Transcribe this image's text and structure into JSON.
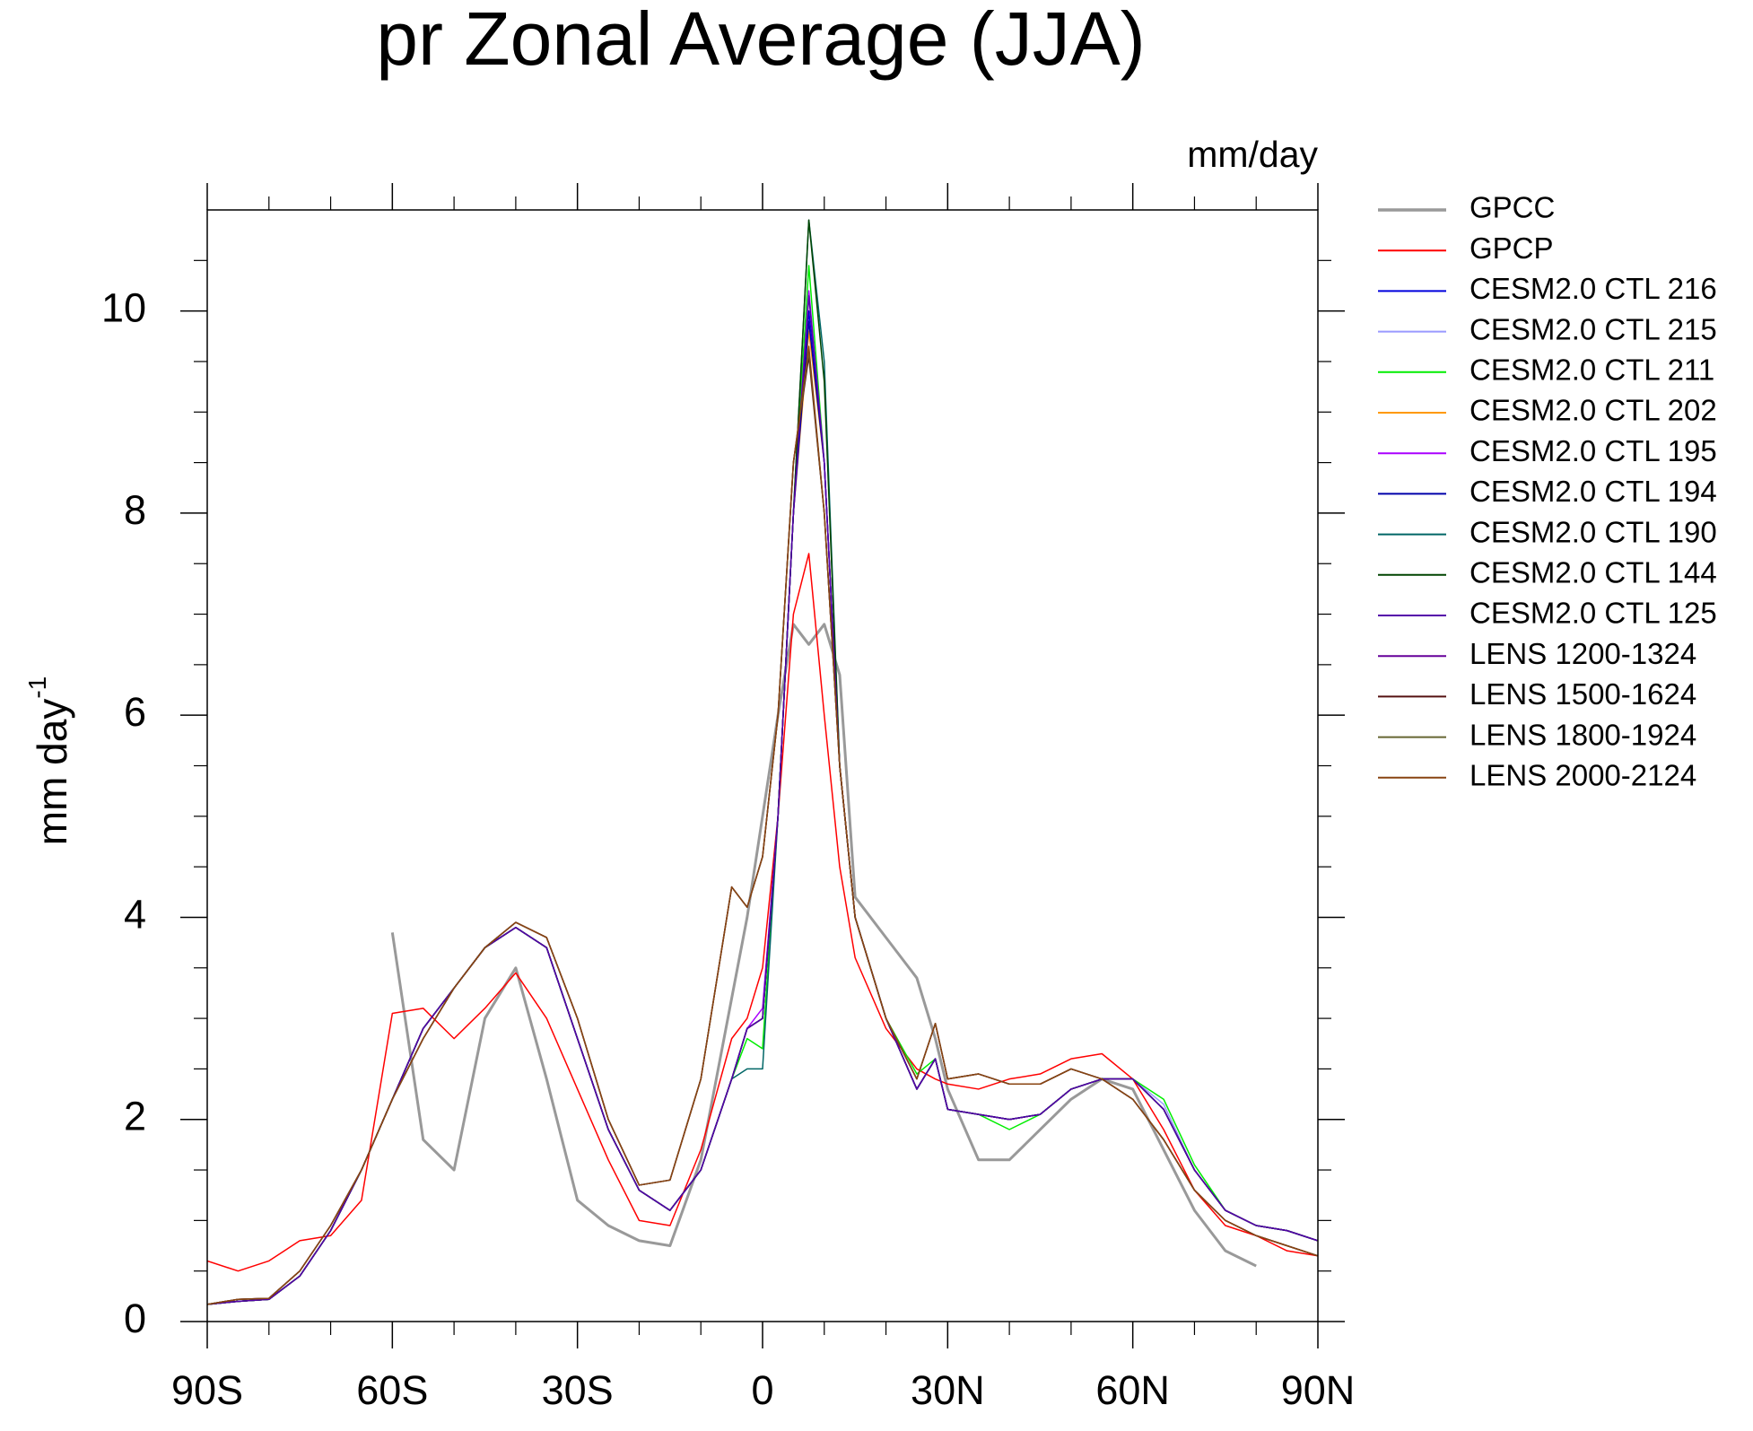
{
  "chart_data": {
    "type": "line",
    "title": "pr Zonal Average (JJA)",
    "units_label": "mm/day",
    "ylabel": "mm day",
    "ylabel_superscript": "-1",
    "x": [
      -90,
      -85,
      -80,
      -75,
      -70,
      -65,
      -60,
      -55,
      -50,
      -45,
      -40,
      -35,
      -30,
      -25,
      -20,
      -15,
      -10,
      -5,
      -2.5,
      0,
      2.5,
      5,
      7.5,
      10,
      12.5,
      15,
      20,
      25,
      28,
      30,
      35,
      40,
      45,
      50,
      55,
      60,
      65,
      70,
      75,
      80,
      85,
      90
    ],
    "xlim": [
      -90,
      90
    ],
    "xticks": [
      {
        "value": -90,
        "label": "90S"
      },
      {
        "value": -60,
        "label": "60S"
      },
      {
        "value": -30,
        "label": "30S"
      },
      0,
      {
        "value": 30,
        "label": "30N"
      },
      {
        "value": 60,
        "label": "60N"
      },
      {
        "value": 90,
        "label": "90N"
      }
    ],
    "xminorticks": [
      -80,
      -70,
      -50,
      -40,
      -20,
      -10,
      10,
      20,
      40,
      50,
      70,
      80
    ],
    "ylim": [
      0,
      11
    ],
    "yticks": [
      0,
      2,
      4,
      6,
      8,
      10
    ],
    "yminorticks": [
      0.5,
      1,
      1.5,
      2.5,
      3,
      3.5,
      4.5,
      5,
      5.5,
      6.5,
      7,
      7.5,
      8.5,
      9,
      9.5,
      10.5
    ],
    "legend": "right-outside",
    "series": [
      {
        "name": "GPCC",
        "color": "#999999",
        "width": 3,
        "values": [
          null,
          null,
          null,
          null,
          null,
          null,
          3.85,
          1.8,
          1.5,
          3.0,
          3.5,
          2.4,
          1.2,
          0.95,
          0.8,
          0.75,
          1.6,
          3.2,
          4.0,
          5.0,
          6.0,
          6.9,
          6.7,
          6.9,
          6.4,
          4.2,
          3.8,
          3.4,
          2.8,
          2.3,
          1.6,
          1.6,
          1.9,
          2.2,
          2.4,
          2.3,
          1.7,
          1.1,
          0.7,
          0.55,
          null,
          null
        ]
      },
      {
        "name": "GPCP",
        "color": "#ff0000",
        "width": 1.5,
        "values": [
          0.6,
          0.5,
          0.6,
          0.8,
          0.85,
          1.2,
          3.05,
          3.1,
          2.8,
          3.1,
          3.45,
          3.0,
          2.3,
          1.6,
          1.0,
          0.95,
          1.7,
          2.8,
          3.0,
          3.5,
          5.0,
          7.0,
          7.6,
          6.0,
          4.5,
          3.6,
          2.9,
          2.5,
          2.4,
          2.35,
          2.3,
          2.4,
          2.45,
          2.6,
          2.65,
          2.4,
          1.9,
          1.3,
          0.95,
          0.85,
          0.7,
          0.65
        ]
      },
      {
        "name": "CESM2.0 CTL 216",
        "color": "#0000dd",
        "width": 1.5,
        "values": [
          0.17,
          0.2,
          0.22,
          0.45,
          0.9,
          1.5,
          2.2,
          2.9,
          3.3,
          3.7,
          3.9,
          3.7,
          2.8,
          1.9,
          1.3,
          1.1,
          1.5,
          2.4,
          2.9,
          3.0,
          5.0,
          8.0,
          10.0,
          8.5,
          5.5,
          4.0,
          3.0,
          2.3,
          2.6,
          2.1,
          2.05,
          2.0,
          2.05,
          2.3,
          2.4,
          2.4,
          2.1,
          1.5,
          1.1,
          0.95,
          0.9,
          0.8
        ]
      },
      {
        "name": "CESM2.0 CTL 215",
        "color": "#9999ff",
        "width": 1.5,
        "values": [
          0.17,
          0.2,
          0.22,
          0.45,
          0.9,
          1.5,
          2.2,
          2.9,
          3.3,
          3.7,
          3.9,
          3.7,
          2.8,
          1.9,
          1.3,
          1.1,
          1.5,
          2.4,
          2.9,
          3.0,
          5.0,
          8.0,
          9.9,
          8.5,
          5.5,
          4.0,
          3.0,
          2.3,
          2.6,
          2.1,
          2.05,
          2.0,
          2.05,
          2.3,
          2.4,
          2.4,
          2.15,
          1.5,
          1.1,
          0.95,
          0.9,
          0.8
        ]
      },
      {
        "name": "CESM2.0 CTL 211",
        "color": "#00ee00",
        "width": 1.5,
        "values": [
          0.17,
          0.2,
          0.22,
          0.45,
          0.9,
          1.5,
          2.2,
          2.9,
          3.3,
          3.7,
          3.9,
          3.7,
          2.8,
          1.9,
          1.3,
          1.1,
          1.5,
          2.4,
          2.8,
          2.7,
          5.0,
          8.0,
          10.45,
          8.5,
          5.5,
          4.0,
          3.0,
          2.45,
          2.6,
          2.1,
          2.05,
          1.9,
          2.05,
          2.3,
          2.4,
          2.4,
          2.2,
          1.55,
          1.1,
          0.95,
          0.9,
          0.8
        ]
      },
      {
        "name": "CESM2.0 CTL 202",
        "color": "#ff9900",
        "width": 1.5,
        "values": [
          0.17,
          0.2,
          0.22,
          0.45,
          0.9,
          1.5,
          2.2,
          2.9,
          3.3,
          3.7,
          3.9,
          3.7,
          2.8,
          1.9,
          1.3,
          1.1,
          1.5,
          2.4,
          2.9,
          3.0,
          5.0,
          8.0,
          9.8,
          8.5,
          5.5,
          4.0,
          3.0,
          2.3,
          2.6,
          2.1,
          2.05,
          2.0,
          2.05,
          2.3,
          2.4,
          2.4,
          2.1,
          1.5,
          1.1,
          0.95,
          0.9,
          0.8
        ]
      },
      {
        "name": "CESM2.0 CTL 195",
        "color": "#aa00ff",
        "width": 1.5,
        "values": [
          0.17,
          0.2,
          0.22,
          0.45,
          0.9,
          1.5,
          2.2,
          2.9,
          3.3,
          3.7,
          3.9,
          3.7,
          2.8,
          1.9,
          1.3,
          1.1,
          1.5,
          2.4,
          2.9,
          3.1,
          5.0,
          8.0,
          10.2,
          8.5,
          5.5,
          4.0,
          3.0,
          2.3,
          2.6,
          2.1,
          2.05,
          2.0,
          2.05,
          2.3,
          2.4,
          2.4,
          2.1,
          1.5,
          1.1,
          0.95,
          0.9,
          0.8
        ]
      },
      {
        "name": "CESM2.0 CTL 194",
        "color": "#0000aa",
        "width": 1.5,
        "values": [
          0.17,
          0.2,
          0.22,
          0.45,
          0.9,
          1.5,
          2.2,
          2.9,
          3.3,
          3.7,
          3.9,
          3.7,
          2.8,
          1.9,
          1.3,
          1.1,
          1.5,
          2.4,
          2.9,
          3.0,
          5.0,
          8.0,
          9.9,
          8.5,
          5.5,
          4.0,
          3.0,
          2.3,
          2.6,
          2.1,
          2.05,
          2.0,
          2.05,
          2.3,
          2.4,
          2.4,
          2.1,
          1.5,
          1.1,
          0.95,
          0.9,
          0.8
        ]
      },
      {
        "name": "CESM2.0 CTL 190",
        "color": "#006666",
        "width": 1.5,
        "values": [
          0.17,
          0.2,
          0.22,
          0.45,
          0.9,
          1.5,
          2.2,
          2.9,
          3.3,
          3.7,
          3.9,
          3.7,
          2.8,
          1.9,
          1.3,
          1.1,
          1.5,
          2.4,
          2.5,
          2.5,
          5.0,
          8.0,
          10.9,
          9.5,
          5.5,
          4.0,
          3.0,
          2.3,
          2.6,
          2.1,
          2.05,
          2.0,
          2.05,
          2.3,
          2.4,
          2.4,
          2.1,
          1.5,
          1.1,
          0.95,
          0.9,
          0.8
        ]
      },
      {
        "name": "CESM2.0 CTL 144",
        "color": "#004400",
        "width": 1.5,
        "values": [
          0.17,
          0.2,
          0.22,
          0.45,
          0.9,
          1.5,
          2.2,
          2.9,
          3.3,
          3.7,
          3.9,
          3.7,
          2.8,
          1.9,
          1.3,
          1.1,
          1.5,
          2.4,
          2.9,
          3.0,
          5.0,
          8.0,
          10.9,
          9.3,
          5.5,
          4.0,
          3.0,
          2.3,
          2.6,
          2.1,
          2.05,
          2.0,
          2.05,
          2.3,
          2.4,
          2.4,
          2.1,
          1.5,
          1.1,
          0.95,
          0.9,
          0.8
        ]
      },
      {
        "name": "CESM2.0 CTL 125",
        "color": "#5500aa",
        "width": 1.5,
        "values": [
          0.17,
          0.2,
          0.22,
          0.45,
          0.9,
          1.5,
          2.2,
          2.9,
          3.3,
          3.7,
          3.9,
          3.7,
          2.8,
          1.9,
          1.3,
          1.1,
          1.5,
          2.4,
          2.9,
          3.0,
          5.0,
          8.0,
          10.15,
          8.5,
          5.5,
          4.0,
          3.0,
          2.3,
          2.6,
          2.1,
          2.05,
          2.0,
          2.05,
          2.3,
          2.4,
          2.4,
          2.1,
          1.5,
          1.1,
          0.95,
          0.9,
          0.8
        ]
      },
      {
        "name": "LENS 1200-1324",
        "color": "#660099",
        "width": 1.5,
        "values": [
          0.17,
          0.22,
          0.23,
          0.5,
          0.95,
          1.5,
          2.2,
          2.8,
          3.3,
          3.7,
          3.95,
          3.8,
          3.0,
          2.0,
          1.35,
          1.4,
          2.4,
          4.3,
          4.1,
          4.6,
          6.0,
          8.5,
          9.6,
          8.0,
          5.5,
          4.0,
          3.0,
          2.4,
          2.95,
          2.4,
          2.45,
          2.35,
          2.35,
          2.5,
          2.4,
          2.2,
          1.8,
          1.3,
          1.0,
          0.85,
          0.75,
          0.65
        ]
      },
      {
        "name": "LENS 1500-1624",
        "color": "#551111",
        "width": 1.5,
        "values": [
          0.17,
          0.22,
          0.23,
          0.5,
          0.95,
          1.5,
          2.2,
          2.8,
          3.3,
          3.7,
          3.95,
          3.8,
          3.0,
          2.0,
          1.35,
          1.4,
          2.4,
          4.3,
          4.1,
          4.6,
          6.0,
          8.5,
          9.55,
          8.0,
          5.5,
          4.0,
          3.0,
          2.4,
          2.95,
          2.4,
          2.45,
          2.35,
          2.35,
          2.5,
          2.4,
          2.2,
          1.8,
          1.3,
          1.0,
          0.85,
          0.75,
          0.65
        ]
      },
      {
        "name": "LENS 1800-1924",
        "color": "#666633",
        "width": 1.5,
        "values": [
          0.17,
          0.22,
          0.23,
          0.5,
          0.95,
          1.5,
          2.2,
          2.8,
          3.3,
          3.7,
          3.95,
          3.8,
          3.0,
          2.0,
          1.35,
          1.4,
          2.4,
          4.3,
          4.1,
          4.6,
          6.0,
          8.5,
          9.6,
          8.0,
          5.5,
          4.0,
          3.0,
          2.4,
          2.95,
          2.4,
          2.45,
          2.35,
          2.35,
          2.5,
          2.4,
          2.2,
          1.8,
          1.3,
          1.0,
          0.85,
          0.75,
          0.65
        ]
      },
      {
        "name": "LENS 2000-2124",
        "color": "#884411",
        "width": 1.5,
        "values": [
          0.17,
          0.22,
          0.23,
          0.5,
          0.95,
          1.5,
          2.2,
          2.8,
          3.3,
          3.7,
          3.95,
          3.8,
          3.0,
          2.0,
          1.35,
          1.4,
          2.4,
          4.3,
          4.1,
          4.6,
          6.0,
          8.5,
          9.65,
          8.0,
          5.5,
          4.0,
          3.0,
          2.4,
          2.95,
          2.4,
          2.45,
          2.35,
          2.35,
          2.5,
          2.4,
          2.2,
          1.8,
          1.3,
          1.0,
          0.85,
          0.75,
          0.65
        ]
      }
    ]
  }
}
